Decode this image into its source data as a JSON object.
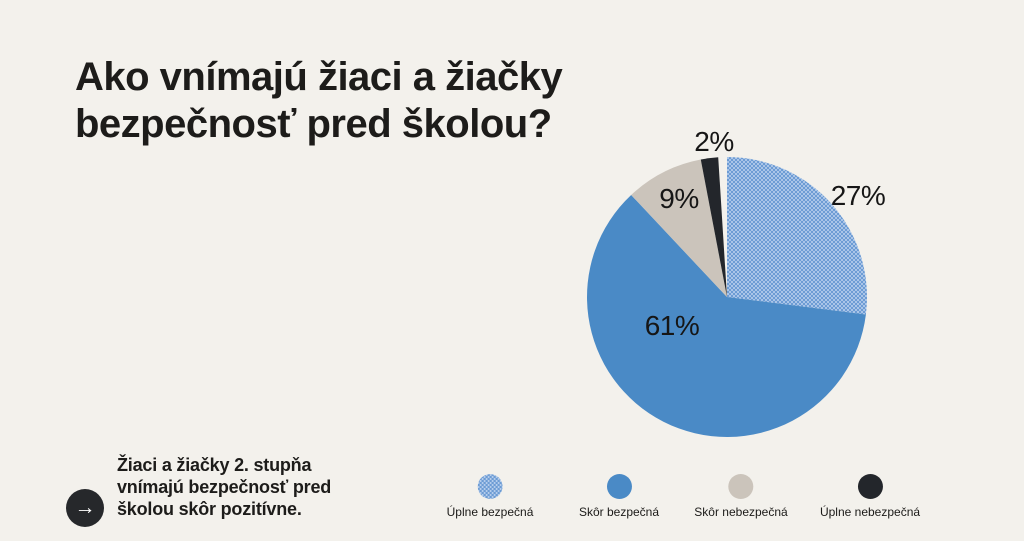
{
  "page": {
    "background": "#f3f1ec",
    "title_lines": [
      "Ako vnímajú žiaci a žiačky",
      "bezpečnosť pred školou?"
    ]
  },
  "note": {
    "text": "Žiaci a žiačky 2. stupňa vnímajú bezpečnosť pred školou skôr pozitívne.",
    "arrow_icon": "→"
  },
  "chart_data": {
    "type": "pie",
    "title": "Ako vnímajú žiaci a žiačky bezpečnosť pred školou?",
    "categories": [
      "Úplne bezpečná",
      "Skôr bezpečná",
      "Skôr nebezpečná",
      "Úplne nebezpečná"
    ],
    "values": [
      27,
      61,
      9,
      2
    ],
    "value_labels": [
      "27%",
      "61%",
      "9%",
      "2%"
    ],
    "colors": [
      "#86abdb",
      "#4a8ac6",
      "#cbc4bb",
      "#23262b"
    ],
    "fill_styles": [
      "dotted",
      "solid",
      "solid",
      "solid"
    ],
    "dotted_pattern": {
      "bg": "#6d9cd4",
      "dot": "#bdd3ee"
    },
    "start_angle_deg": 0,
    "direction": "clockwise",
    "legend_position": "bottom",
    "label_placement": [
      "outside",
      "inside",
      "inside",
      "outside"
    ],
    "label_positions": [
      [
        291,
        59
      ],
      [
        105,
        189
      ],
      [
        112,
        62
      ],
      [
        147,
        5
      ]
    ]
  }
}
